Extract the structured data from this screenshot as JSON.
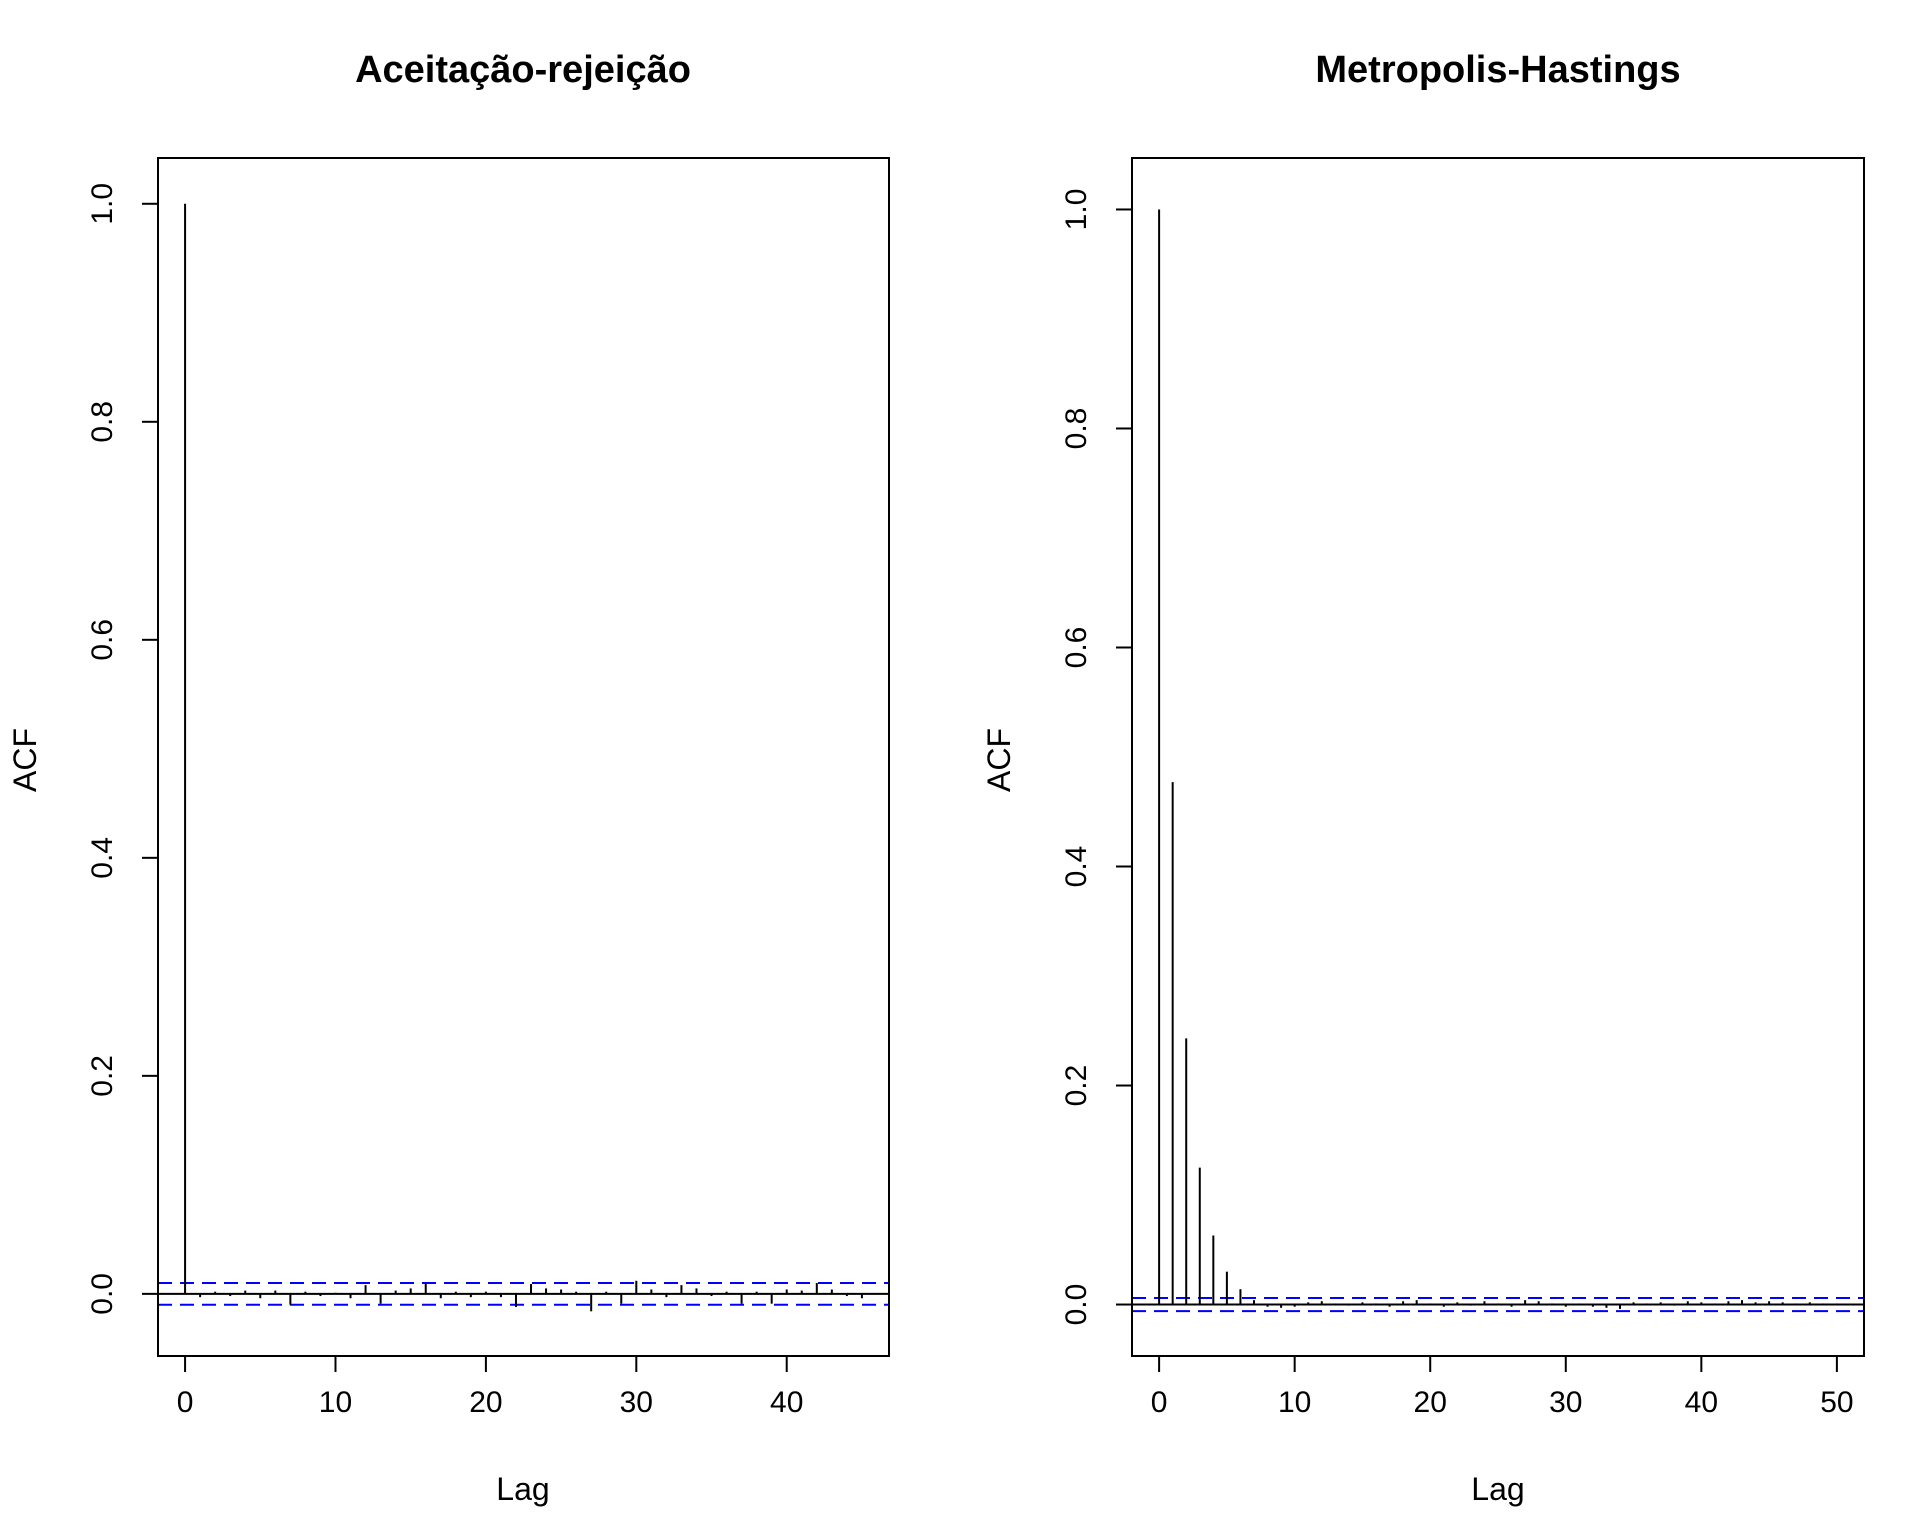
{
  "chart_data": [
    {
      "type": "bar",
      "title": "Aceitação-rejeição",
      "xlabel": "Lag",
      "ylabel": "ACF",
      "xlim": [
        -1.8,
        46.8
      ],
      "ylim": [
        -0.057,
        1.042
      ],
      "xticks": [
        0,
        10,
        20,
        30,
        40
      ],
      "yticks": [
        0.0,
        0.2,
        0.4,
        0.6,
        0.8,
        1.0
      ],
      "ytick_labels": [
        "0.0",
        "0.2",
        "0.4",
        "0.6",
        "0.8",
        "1.0"
      ],
      "confidence_band": [
        0.01,
        -0.01
      ],
      "colors": {
        "bars": "#000000",
        "confidence": "#0000ff"
      },
      "x": [
        0,
        1,
        2,
        3,
        4,
        5,
        6,
        7,
        8,
        9,
        10,
        11,
        12,
        13,
        14,
        15,
        16,
        17,
        18,
        19,
        20,
        21,
        22,
        23,
        24,
        25,
        26,
        27,
        28,
        29,
        30,
        31,
        32,
        33,
        34,
        35,
        36,
        37,
        38,
        39,
        40,
        41,
        42,
        43,
        44,
        45
      ],
      "values": [
        1.0,
        -0.003,
        0.002,
        -0.002,
        0.003,
        -0.004,
        0.003,
        -0.01,
        0.002,
        -0.002,
        0.001,
        -0.004,
        0.008,
        -0.009,
        0.003,
        0.005,
        0.009,
        -0.004,
        0.002,
        -0.003,
        0.002,
        -0.003,
        -0.012,
        0.009,
        0.005,
        0.004,
        0.002,
        -0.016,
        0.002,
        -0.009,
        0.012,
        0.004,
        -0.003,
        0.008,
        0.005,
        -0.002,
        0.002,
        -0.009,
        0.002,
        -0.009,
        0.004,
        0.003,
        0.01,
        0.004,
        -0.002,
        -0.004
      ]
    },
    {
      "type": "bar",
      "title": "Metropolis-Hastings",
      "xlabel": "Lag",
      "ylabel": "ACF",
      "xlim": [
        -2.0,
        52.0
      ],
      "ylim": [
        -0.047,
        1.047
      ],
      "xticks": [
        0,
        10,
        20,
        30,
        40,
        50
      ],
      "yticks": [
        0.0,
        0.2,
        0.4,
        0.6,
        0.8,
        1.0
      ],
      "ytick_labels": [
        "0.0",
        "0.2",
        "0.4",
        "0.6",
        "0.8",
        "1.0"
      ],
      "confidence_band": [
        0.006,
        -0.006
      ],
      "colors": {
        "bars": "#000000",
        "confidence": "#0000ff"
      },
      "x": [
        0,
        1,
        2,
        3,
        4,
        5,
        6,
        7,
        8,
        9,
        10,
        11,
        12,
        13,
        14,
        15,
        16,
        17,
        18,
        19,
        20,
        21,
        22,
        23,
        24,
        25,
        26,
        27,
        28,
        29,
        30,
        31,
        32,
        33,
        34,
        35,
        36,
        37,
        38,
        39,
        40,
        41,
        42,
        43,
        44,
        45,
        46,
        47,
        48,
        49,
        50
      ],
      "values": [
        1.0,
        0.477,
        0.243,
        0.125,
        0.063,
        0.03,
        0.014,
        0.004,
        -0.002,
        -0.003,
        -0.002,
        0.002,
        0.003,
        0.001,
        -0.001,
        0.002,
        0.001,
        -0.002,
        0.003,
        0.004,
        0.001,
        -0.002,
        0.002,
        -0.001,
        0.003,
        0.001,
        -0.002,
        0.004,
        0.003,
        0.001,
        -0.002,
        0.001,
        -0.002,
        -0.003,
        -0.004,
        0.002,
        0.001,
        0.002,
        -0.001,
        0.003,
        0.002,
        0.001,
        0.003,
        0.004,
        0.002,
        0.003,
        0.002,
        0.001,
        0.002,
        0.001,
        0.001
      ]
    }
  ]
}
